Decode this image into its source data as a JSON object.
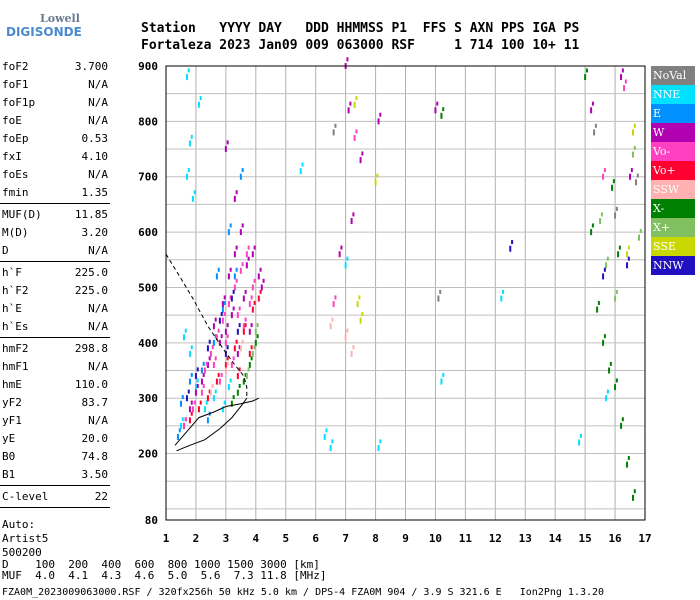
{
  "logo": {
    "line1": "Lowell",
    "line2": "DIGISONDE"
  },
  "header": {
    "labels": "Station   YYYY DAY   DDD HHMMSS P1  FFS S AXN PPS IGA PS",
    "values": "Fortaleza 2023 Jan09 009 063000 RSF     1 714 100 10+ 11"
  },
  "params": [
    {
      "label": "foF2",
      "value": "3.700"
    },
    {
      "label": "foF1",
      "value": "N/A"
    },
    {
      "label": "foF1p",
      "value": "N/A"
    },
    {
      "label": "foE",
      "value": "N/A"
    },
    {
      "label": "foEp",
      "value": "0.53"
    },
    {
      "label": "fxI",
      "value": "4.10"
    },
    {
      "label": "foEs",
      "value": "N/A"
    },
    {
      "label": "fmin",
      "value": "1.35"
    },
    {
      "sep": true
    },
    {
      "label": "MUF(D)",
      "value": "11.85"
    },
    {
      "label": "M(D)",
      "value": "3.20"
    },
    {
      "label": "D",
      "value": "N/A"
    },
    {
      "sep": true
    },
    {
      "label": "h`F",
      "value": "225.0"
    },
    {
      "label": "h`F2",
      "value": "225.0"
    },
    {
      "label": "h`E",
      "value": "N/A"
    },
    {
      "label": "h`Es",
      "value": "N/A"
    },
    {
      "sep": true
    },
    {
      "label": "hmF2",
      "value": "298.8"
    },
    {
      "label": "hmF1",
      "value": "N/A"
    },
    {
      "label": "hmE",
      "value": "110.0"
    },
    {
      "label": "yF2",
      "value": "83.7"
    },
    {
      "label": "yF1",
      "value": "N/A"
    },
    {
      "label": "yE",
      "value": "20.0"
    },
    {
      "label": "B0",
      "value": "74.8"
    },
    {
      "label": "B1",
      "value": "3.50"
    },
    {
      "sep": true
    },
    {
      "label": "C-level",
      "value": "22"
    },
    {
      "sep": true
    }
  ],
  "auto": [
    "Auto:",
    "Artist5",
    "500200"
  ],
  "legend": [
    {
      "label": "NoVal",
      "color": "#808080"
    },
    {
      "label": "NNE",
      "color": "#00e0ff"
    },
    {
      "label": "E",
      "color": "#0090ff"
    },
    {
      "label": "W",
      "color": "#b000b0"
    },
    {
      "label": "Vo-",
      "color": "#ff40c0"
    },
    {
      "label": "Vo+",
      "color": "#ff0030"
    },
    {
      "label": "SSW",
      "color": "#ffb0b0"
    },
    {
      "label": "X-",
      "color": "#008000"
    },
    {
      "label": "X+",
      "color": "#80c060"
    },
    {
      "label": "SSE",
      "color": "#c8d800"
    },
    {
      "label": "NNW",
      "color": "#2010c0"
    }
  ],
  "footer": {
    "line1": "D    100  200  400  600  800 1000 1500 3000 [km]",
    "line2": "MUF  4.0  4.1  4.3  4.6  5.0  5.6  7.3 11.8 [MHz]",
    "line3": "FZA0M_2023009063000.RSF / 320fx256h 50 kHz 5.0 km / DPS-4 FZA0M 904 / 3.9 S 321.6 E   Ion2Png 1.3.20"
  },
  "chart_data": {
    "type": "scatter",
    "title": "",
    "xlabel": "",
    "ylabel": "",
    "xlim": [
      1,
      17
    ],
    "ylim": [
      80,
      900
    ],
    "x_ticks": [
      1,
      2,
      3,
      4,
      5,
      6,
      7,
      8,
      9,
      10,
      11,
      12,
      13,
      14,
      15,
      16,
      17
    ],
    "y_ticks": [
      80,
      200,
      300,
      400,
      500,
      600,
      700,
      800,
      900
    ],
    "grid": true,
    "legend_position": "right",
    "series": [
      {
        "name": "NNE",
        "color": "#00e0ff",
        "points": [
          [
            1.7,
            880
          ],
          [
            1.8,
            760
          ],
          [
            1.7,
            700
          ],
          [
            1.9,
            660
          ],
          [
            2.1,
            830
          ],
          [
            1.6,
            410
          ],
          [
            1.8,
            380
          ],
          [
            1.5,
            250
          ],
          [
            2.0,
            320
          ],
          [
            2.3,
            280
          ],
          [
            2.6,
            300
          ],
          [
            3.1,
            320
          ],
          [
            2.9,
            280
          ],
          [
            5.5,
            710
          ],
          [
            6.3,
            230
          ],
          [
            6.5,
            210
          ],
          [
            7.0,
            540
          ],
          [
            8.1,
            210
          ],
          [
            10.2,
            330
          ],
          [
            12.2,
            480
          ],
          [
            14.8,
            220
          ],
          [
            15.7,
            300
          ]
        ]
      },
      {
        "name": "E",
        "color": "#0090ff",
        "points": [
          [
            1.5,
            290
          ],
          [
            1.8,
            330
          ],
          [
            2.2,
            350
          ],
          [
            2.6,
            400
          ],
          [
            2.9,
            460
          ],
          [
            3.3,
            520
          ],
          [
            3.1,
            600
          ],
          [
            2.7,
            520
          ],
          [
            3.5,
            700
          ],
          [
            1.4,
            230
          ],
          [
            2.4,
            260
          ]
        ]
      },
      {
        "name": "W",
        "color": "#b000b0",
        "points": [
          [
            2.6,
            430
          ],
          [
            2.9,
            470
          ],
          [
            3.1,
            520
          ],
          [
            3.3,
            560
          ],
          [
            3.5,
            600
          ],
          [
            3.7,
            540
          ],
          [
            3.9,
            560
          ],
          [
            4.1,
            520
          ],
          [
            4.2,
            500
          ],
          [
            3.6,
            480
          ],
          [
            3.2,
            450
          ],
          [
            3.0,
            420
          ],
          [
            2.8,
            400
          ],
          [
            3.4,
            380
          ],
          [
            3.8,
            420
          ],
          [
            2.4,
            360
          ],
          [
            2.2,
            330
          ],
          [
            2.0,
            310
          ],
          [
            1.8,
            280
          ],
          [
            1.6,
            250
          ],
          [
            3.0,
            750
          ],
          [
            3.3,
            660
          ],
          [
            7.0,
            900
          ],
          [
            7.5,
            730
          ],
          [
            7.1,
            820
          ],
          [
            8.1,
            800
          ],
          [
            10.0,
            820
          ],
          [
            15.2,
            820
          ],
          [
            16.2,
            880
          ],
          [
            16.5,
            700
          ],
          [
            6.8,
            560
          ],
          [
            7.2,
            620
          ]
        ]
      },
      {
        "name": "Vo-",
        "color": "#ff40c0",
        "points": [
          [
            2.3,
            350
          ],
          [
            2.5,
            380
          ],
          [
            2.7,
            410
          ],
          [
            2.9,
            440
          ],
          [
            3.1,
            470
          ],
          [
            3.3,
            500
          ],
          [
            3.5,
            530
          ],
          [
            3.7,
            560
          ],
          [
            3.9,
            500
          ],
          [
            3.4,
            450
          ],
          [
            3.0,
            400
          ],
          [
            2.6,
            360
          ],
          [
            2.2,
            310
          ],
          [
            1.9,
            280
          ],
          [
            1.6,
            250
          ],
          [
            3.6,
            430
          ],
          [
            3.8,
            470
          ],
          [
            2.8,
            330
          ],
          [
            3.2,
            360
          ],
          [
            7.3,
            770
          ],
          [
            6.6,
            470
          ],
          [
            16.3,
            860
          ],
          [
            15.6,
            700
          ]
        ]
      },
      {
        "name": "Vo+",
        "color": "#ff0030",
        "points": [
          [
            2.4,
            300
          ],
          [
            2.7,
            330
          ],
          [
            3.0,
            360
          ],
          [
            3.3,
            390
          ],
          [
            3.6,
            420
          ],
          [
            3.9,
            460
          ],
          [
            4.1,
            480
          ],
          [
            2.1,
            280
          ],
          [
            1.8,
            260
          ],
          [
            3.4,
            340
          ],
          [
            3.8,
            380
          ]
        ]
      },
      {
        "name": "SSW",
        "color": "#ffb0b0",
        "points": [
          [
            2.5,
            310
          ],
          [
            3.0,
            350
          ],
          [
            3.5,
            390
          ],
          [
            7.0,
            410
          ],
          [
            7.2,
            380
          ],
          [
            6.5,
            430
          ]
        ]
      },
      {
        "name": "X-",
        "color": "#008000",
        "points": [
          [
            3.6,
            330
          ],
          [
            3.8,
            360
          ],
          [
            4.0,
            400
          ],
          [
            3.4,
            310
          ],
          [
            3.2,
            290
          ],
          [
            15.0,
            880
          ],
          [
            15.2,
            600
          ],
          [
            15.4,
            460
          ],
          [
            15.6,
            400
          ],
          [
            15.8,
            350
          ],
          [
            16.0,
            320
          ],
          [
            16.2,
            250
          ],
          [
            16.4,
            180
          ],
          [
            16.6,
            120
          ],
          [
            15.9,
            680
          ],
          [
            16.1,
            560
          ],
          [
            10.2,
            810
          ]
        ]
      },
      {
        "name": "X+",
        "color": "#80c060",
        "points": [
          [
            3.9,
            380
          ],
          [
            4.0,
            420
          ],
          [
            3.7,
            340
          ],
          [
            15.5,
            620
          ],
          [
            15.7,
            540
          ],
          [
            16.6,
            740
          ],
          [
            16.8,
            590
          ],
          [
            16.0,
            480
          ]
        ]
      },
      {
        "name": "SSE",
        "color": "#c8d800",
        "points": [
          [
            7.4,
            470
          ],
          [
            7.5,
            440
          ],
          [
            7.3,
            830
          ],
          [
            8.0,
            690
          ],
          [
            16.6,
            780
          ],
          [
            16.4,
            560
          ]
        ]
      },
      {
        "name": "NNW",
        "color": "#2010c0",
        "points": [
          [
            1.7,
            300
          ],
          [
            2.0,
            340
          ],
          [
            2.4,
            390
          ],
          [
            2.8,
            440
          ],
          [
            3.2,
            480
          ],
          [
            3.4,
            420
          ],
          [
            3.0,
            380
          ],
          [
            12.5,
            570
          ],
          [
            15.6,
            520
          ],
          [
            16.4,
            540
          ]
        ]
      },
      {
        "name": "NoVal",
        "color": "#808080",
        "points": [
          [
            6.6,
            780
          ],
          [
            15.3,
            780
          ],
          [
            16.0,
            630
          ],
          [
            10.1,
            480
          ],
          [
            16.7,
            690
          ]
        ]
      }
    ],
    "profile_curve": [
      [
        1.35,
        205
      ],
      [
        1.8,
        215
      ],
      [
        2.3,
        225
      ],
      [
        2.8,
        245
      ],
      [
        3.2,
        265
      ],
      [
        3.5,
        285
      ],
      [
        3.7,
        300
      ]
    ],
    "profile_upper": [
      [
        1.0,
        560
      ],
      [
        1.4,
        525
      ],
      [
        1.9,
        480
      ],
      [
        2.4,
        430
      ],
      [
        2.9,
        390
      ],
      [
        3.3,
        360
      ],
      [
        3.6,
        340
      ],
      [
        3.7,
        320
      ],
      [
        3.7,
        300
      ]
    ],
    "profile_lower_trace": [
      [
        1.3,
        215
      ],
      [
        1.7,
        240
      ],
      [
        2.1,
        265
      ],
      [
        2.6,
        275
      ],
      [
        3.0,
        285
      ],
      [
        3.5,
        290
      ],
      [
        3.9,
        295
      ],
      [
        4.1,
        300
      ]
    ]
  }
}
